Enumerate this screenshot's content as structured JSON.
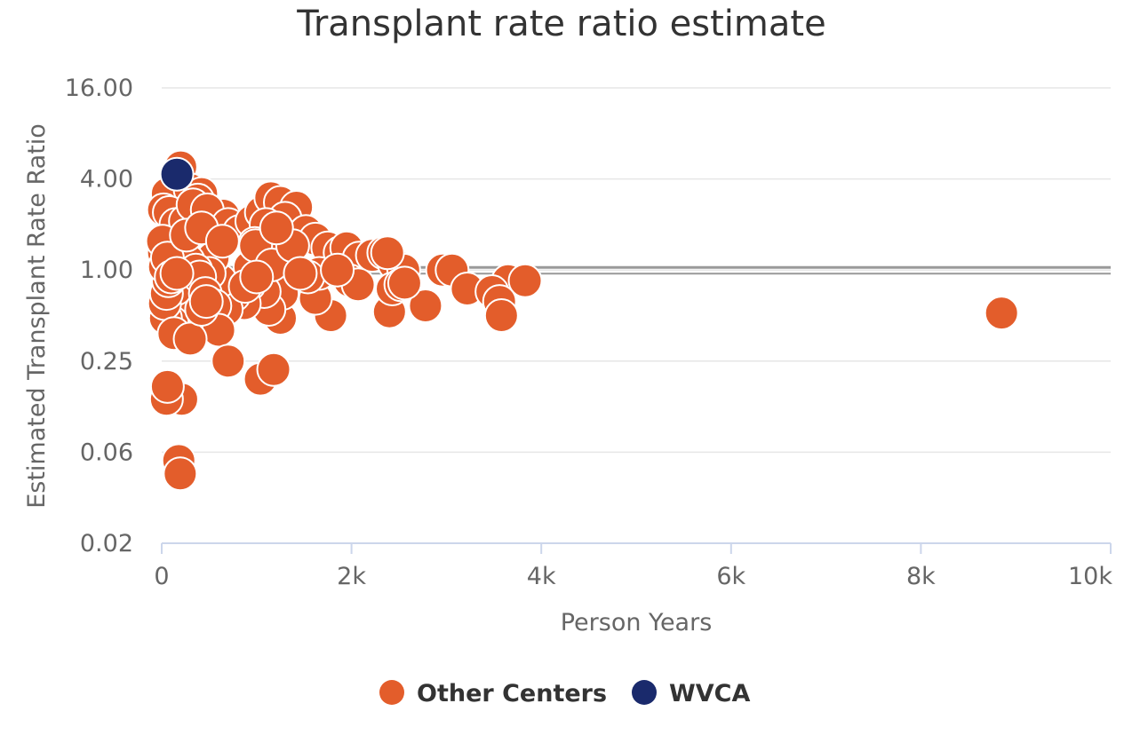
{
  "chart_data": {
    "type": "scatter",
    "title": "Transplant rate ratio estimate",
    "xlabel": "Person Years",
    "ylabel": "Estimated Transplant Rate Ratio",
    "x_scale": "linear",
    "y_scale": "log2",
    "xlim": [
      0,
      10000
    ],
    "ylim": [
      0.015625,
      16
    ],
    "x_ticks": [
      {
        "value": 0,
        "label": "0"
      },
      {
        "value": 2000,
        "label": "2k"
      },
      {
        "value": 4000,
        "label": "4k"
      },
      {
        "value": 6000,
        "label": "6k"
      },
      {
        "value": 8000,
        "label": "8k"
      },
      {
        "value": 10000,
        "label": "10k"
      }
    ],
    "y_ticks": [
      {
        "value": 0.015625,
        "label": "0.02"
      },
      {
        "value": 0.0625,
        "label": "0.06"
      },
      {
        "value": 0.25,
        "label": "0.25"
      },
      {
        "value": 1,
        "label": "1.00"
      },
      {
        "value": 4,
        "label": "4.00"
      },
      {
        "value": 16,
        "label": "16.00"
      }
    ],
    "reference_line": {
      "y": 1,
      "color": "#999999"
    },
    "legend_position": "bottom-center",
    "series": [
      {
        "name": "Other Centers",
        "color": "#E35D2B",
        "points": [
          [
            200,
            4.8
          ],
          [
            60,
            3.2
          ],
          [
            300,
            3.4
          ],
          [
            420,
            3.2
          ],
          [
            380,
            2.9
          ],
          [
            560,
            2.2
          ],
          [
            650,
            2.3
          ],
          [
            20,
            2.5
          ],
          [
            80,
            2.4
          ],
          [
            150,
            2.0
          ],
          [
            250,
            2.1
          ],
          [
            330,
            2.7
          ],
          [
            480,
            2.5
          ],
          [
            700,
            2.0
          ],
          [
            820,
            1.8
          ],
          [
            950,
            2.1
          ],
          [
            1050,
            2.4
          ],
          [
            1150,
            3.0
          ],
          [
            1250,
            2.8
          ],
          [
            1420,
            2.6
          ],
          [
            1300,
            2.2
          ],
          [
            1200,
            1.7
          ],
          [
            1100,
            2.0
          ],
          [
            980,
            1.5
          ],
          [
            1520,
            1.8
          ],
          [
            1620,
            1.6
          ],
          [
            1750,
            1.4
          ],
          [
            1880,
            1.3
          ],
          [
            1950,
            1.4
          ],
          [
            2080,
            1.2
          ],
          [
            2220,
            1.25
          ],
          [
            2340,
            1.3
          ],
          [
            2450,
            1.1
          ],
          [
            2550,
            1.0
          ],
          [
            2960,
            1.0
          ],
          [
            3060,
            1.0
          ],
          [
            3220,
            0.75
          ],
          [
            3650,
            0.85
          ],
          [
            3830,
            0.85
          ],
          [
            3480,
            0.72
          ],
          [
            3560,
            0.62
          ],
          [
            3580,
            0.5
          ],
          [
            2780,
            0.58
          ],
          [
            2400,
            0.53
          ],
          [
            2430,
            0.75
          ],
          [
            2520,
            0.8
          ],
          [
            2560,
            0.82
          ],
          [
            1980,
            0.85
          ],
          [
            2070,
            0.8
          ],
          [
            1780,
            0.5
          ],
          [
            1620,
            0.65
          ],
          [
            1660,
            0.95
          ],
          [
            1540,
            0.9
          ],
          [
            1250,
            0.48
          ],
          [
            1270,
            0.7
          ],
          [
            1130,
            0.55
          ],
          [
            1080,
            0.72
          ],
          [
            920,
            0.8
          ],
          [
            870,
            0.6
          ],
          [
            760,
            0.68
          ],
          [
            680,
            0.55
          ],
          [
            620,
            0.85
          ],
          [
            540,
            1.2
          ],
          [
            500,
            0.95
          ],
          [
            440,
            0.7
          ],
          [
            390,
            0.6
          ],
          [
            330,
            0.5
          ],
          [
            290,
            0.45
          ],
          [
            210,
            0.5
          ],
          [
            150,
            0.75
          ],
          [
            110,
            0.45
          ],
          [
            40,
            0.48
          ],
          [
            30,
            0.6
          ],
          [
            50,
            0.7
          ],
          [
            70,
            0.85
          ],
          [
            90,
            1.0
          ],
          [
            120,
            1.1
          ],
          [
            180,
            1.3
          ],
          [
            230,
            1.5
          ],
          [
            280,
            1.15
          ],
          [
            360,
            1.0
          ],
          [
            400,
            0.9
          ],
          [
            460,
            0.7
          ],
          [
            560,
            0.58
          ],
          [
            600,
            0.4
          ],
          [
            700,
            0.25
          ],
          [
            1040,
            0.19
          ],
          [
            1180,
            0.22
          ],
          [
            210,
            0.14
          ],
          [
            50,
            0.14
          ],
          [
            20,
            1.3
          ],
          [
            10,
            1.55
          ],
          [
            30,
            1.05
          ],
          [
            60,
            1.2
          ],
          [
            100,
            0.9
          ],
          [
            160,
            0.95
          ],
          [
            260,
            1.7
          ],
          [
            420,
            1.9
          ],
          [
            640,
            1.55
          ],
          [
            930,
            1.05
          ],
          [
            990,
            1.45
          ],
          [
            1160,
            1.08
          ],
          [
            1380,
            1.45
          ],
          [
            1460,
            0.95
          ],
          [
            180,
            0.055
          ],
          [
            195,
            0.045
          ],
          [
            60,
            0.17
          ],
          [
            130,
            0.38
          ],
          [
            300,
            0.35
          ],
          [
            420,
            0.55
          ],
          [
            470,
            0.62
          ],
          [
            880,
            0.78
          ],
          [
            1000,
            0.9
          ],
          [
            1210,
            1.9
          ],
          [
            1850,
            1.0
          ],
          [
            2380,
            1.3
          ],
          [
            8850,
            0.52
          ]
        ]
      },
      {
        "name": "WVCA",
        "color": "#1A2A6C",
        "points": [
          [
            160,
            4.3
          ]
        ]
      }
    ]
  }
}
